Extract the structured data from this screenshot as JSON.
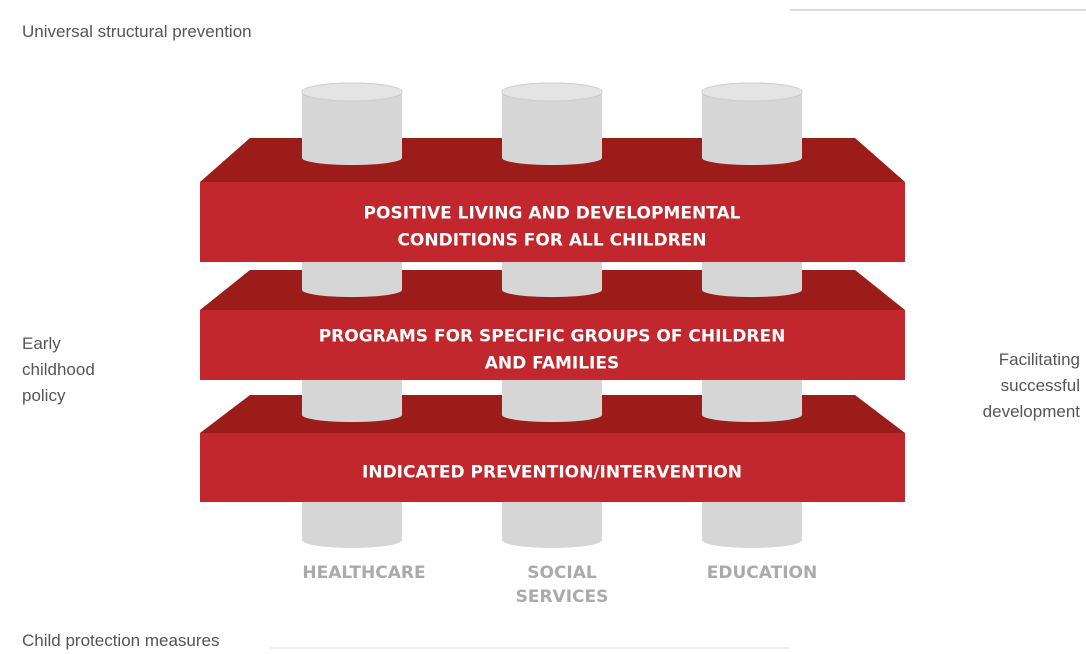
{
  "corners": {
    "top_left": "Universal structural  prevention",
    "bottom_left": "Child protection measures"
  },
  "side_labels": {
    "left": [
      "Early",
      "childhood",
      "policy"
    ],
    "right": [
      "Facilitating",
      "successful",
      "development"
    ]
  },
  "layers": [
    {
      "lines": [
        "POSITIVE LIVING AND DEVELOPMENTAL",
        "CONDITIONS FOR ALL CHILDREN"
      ]
    },
    {
      "lines": [
        "PROGRAMS FOR SPECIFIC GROUPS OF CHILDREN",
        "AND FAMILIES"
      ]
    },
    {
      "lines": [
        "INDICATED PREVENTION/INTERVENTION"
      ]
    }
  ],
  "pillars": [
    {
      "lines": [
        "HEALTHCARE"
      ]
    },
    {
      "lines": [
        "SOCIAL",
        "SERVICES"
      ]
    },
    {
      "lines": [
        "EDUCATION"
      ]
    }
  ]
}
